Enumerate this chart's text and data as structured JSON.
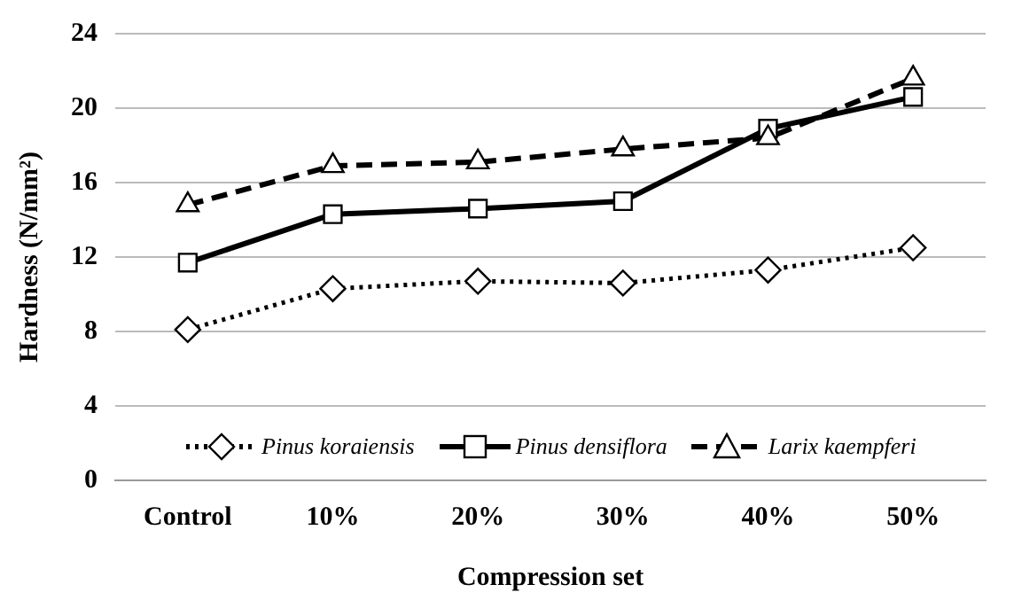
{
  "chart_data": {
    "type": "line",
    "xlabel": "Compression set",
    "ylabel": "Hardness (N/mm²)",
    "categories": [
      "Control",
      "10%",
      "20%",
      "30%",
      "40%",
      "50%"
    ],
    "ylim": [
      0,
      24
    ],
    "yticks": [
      0,
      4,
      8,
      12,
      16,
      20,
      24
    ],
    "grid": "y",
    "legend": "bottom",
    "series": [
      {
        "name": "Pinus koraiensis",
        "color": "#000000",
        "marker": "diamond",
        "line_style": "dotted",
        "values": [
          8.1,
          10.3,
          10.7,
          10.6,
          11.3,
          12.5
        ]
      },
      {
        "name": "Pinus densiflora",
        "color": "#000000",
        "marker": "square",
        "line_style": "solid",
        "values": [
          11.7,
          14.3,
          14.6,
          15.0,
          18.9,
          20.6
        ]
      },
      {
        "name": "Larix kaempferi",
        "color": "#000000",
        "marker": "triangle",
        "line_style": "dashed",
        "values": [
          14.8,
          16.9,
          17.1,
          17.8,
          18.4,
          21.6
        ]
      }
    ]
  }
}
